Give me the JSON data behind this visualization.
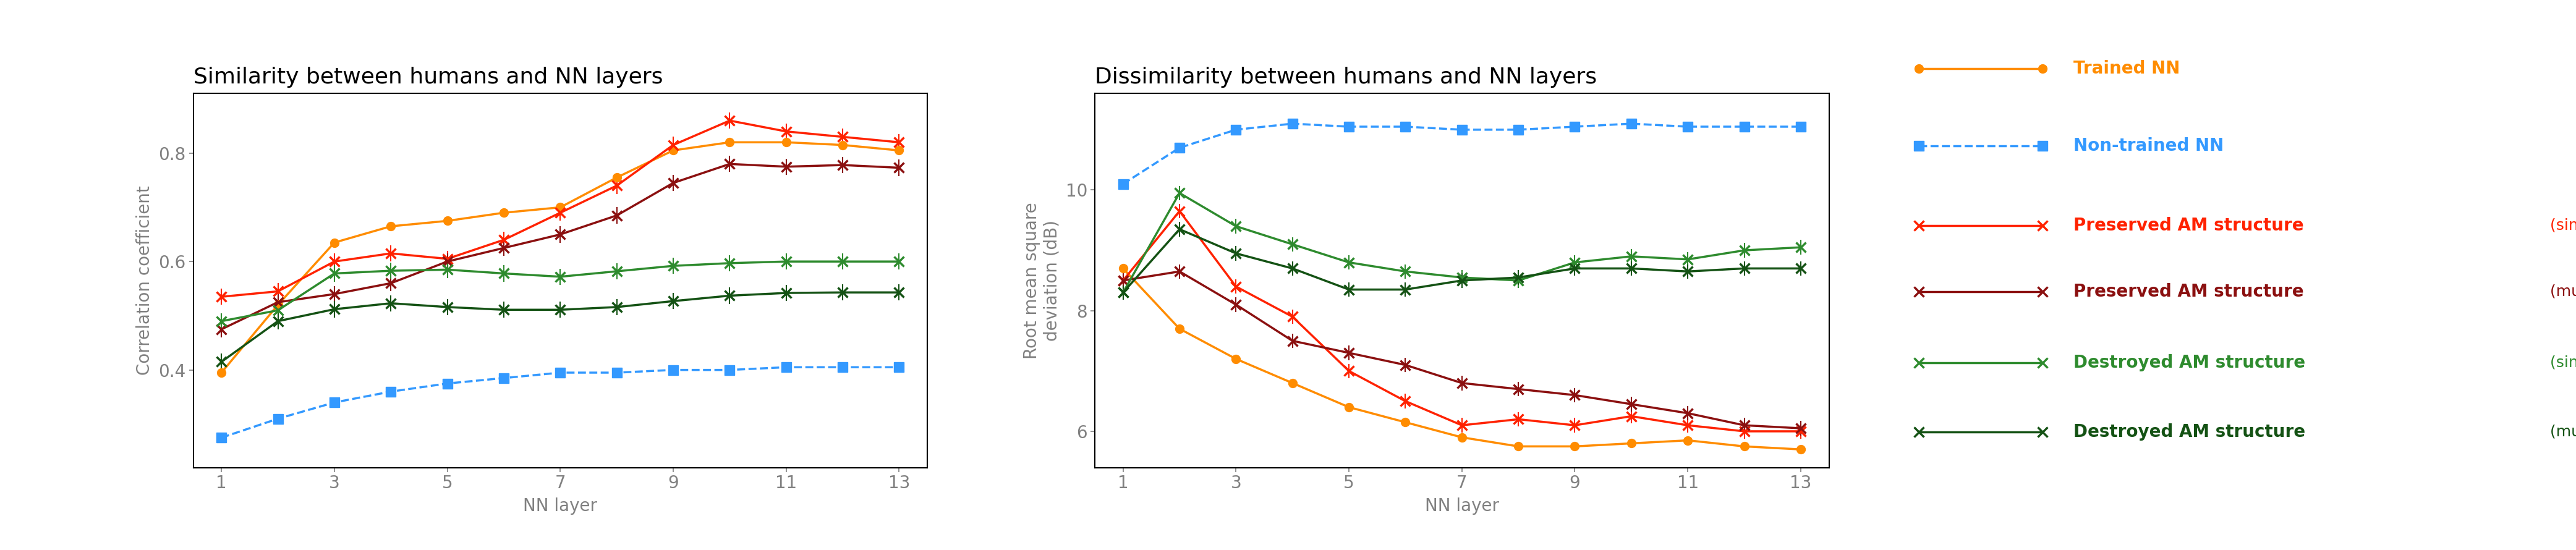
{
  "title_left": "Similarity between humans and NN layers",
  "title_right": "Dissimilarity between humans and NN layers",
  "xlabel": "NN layer",
  "ylabel_left": "Correlation coefficient",
  "ylabel_right": "Root mean square\ndeviation (dB)",
  "x": [
    1,
    2,
    3,
    4,
    5,
    6,
    7,
    8,
    9,
    10,
    11,
    12,
    13
  ],
  "sim_trained": [
    0.395,
    0.52,
    0.635,
    0.665,
    0.675,
    0.69,
    0.7,
    0.755,
    0.805,
    0.82,
    0.82,
    0.815,
    0.805
  ],
  "sim_nontrained": [
    0.275,
    0.31,
    0.34,
    0.36,
    0.375,
    0.385,
    0.395,
    0.395,
    0.4,
    0.4,
    0.405,
    0.405,
    0.405
  ],
  "sim_preserved_single": [
    0.535,
    0.545,
    0.6,
    0.615,
    0.605,
    0.64,
    0.69,
    0.74,
    0.815,
    0.86,
    0.84,
    0.83,
    0.82
  ],
  "sim_preserved_multi": [
    0.475,
    0.525,
    0.54,
    0.56,
    0.6,
    0.625,
    0.65,
    0.685,
    0.745,
    0.78,
    0.775,
    0.778,
    0.773
  ],
  "sim_destroyed_single": [
    0.49,
    0.51,
    0.578,
    0.583,
    0.585,
    0.578,
    0.572,
    0.582,
    0.592,
    0.597,
    0.6,
    0.6,
    0.6
  ],
  "sim_destroyed_multi": [
    0.415,
    0.49,
    0.512,
    0.523,
    0.516,
    0.511,
    0.511,
    0.516,
    0.527,
    0.537,
    0.542,
    0.543,
    0.543
  ],
  "dis_trained": [
    8.7,
    7.7,
    7.2,
    6.8,
    6.4,
    6.15,
    5.9,
    5.75,
    5.75,
    5.8,
    5.85,
    5.75,
    5.7
  ],
  "dis_nontrained": [
    10.1,
    10.7,
    11.0,
    11.1,
    11.05,
    11.05,
    11.0,
    11.0,
    11.05,
    11.1,
    11.05,
    11.05,
    11.05
  ],
  "dis_preserved_single": [
    8.5,
    9.65,
    8.4,
    7.9,
    7.0,
    6.5,
    6.1,
    6.2,
    6.1,
    6.25,
    6.1,
    6.0,
    6.0
  ],
  "dis_preserved_multi": [
    8.5,
    8.65,
    8.1,
    7.5,
    7.3,
    7.1,
    6.8,
    6.7,
    6.6,
    6.45,
    6.3,
    6.1,
    6.05
  ],
  "dis_destroyed_single": [
    8.3,
    9.95,
    9.4,
    9.1,
    8.8,
    8.65,
    8.55,
    8.5,
    8.8,
    8.9,
    8.85,
    9.0,
    9.05
  ],
  "dis_destroyed_multi": [
    8.3,
    9.35,
    8.95,
    8.7,
    8.35,
    8.35,
    8.5,
    8.55,
    8.7,
    8.7,
    8.65,
    8.7,
    8.7
  ],
  "color_trained": "#FF8C00",
  "color_nontrained": "#3399FF",
  "color_preserved_single": "#FF2200",
  "color_preserved_multi": "#8B1010",
  "color_destroyed_single": "#2E8B2E",
  "color_destroyed_multi": "#145214",
  "ylim_left": [
    0.22,
    0.91
  ],
  "ylim_right": [
    5.4,
    11.6
  ],
  "yticks_left": [
    0.4,
    0.6,
    0.8
  ],
  "yticks_right": [
    6,
    8,
    10
  ],
  "xticks": [
    1,
    3,
    5,
    7,
    9,
    11,
    13
  ],
  "title_fontsize": 26,
  "label_fontsize": 20,
  "tick_fontsize": 20,
  "legend_main_fontsize": 20,
  "legend_sub_fontsize": 18
}
